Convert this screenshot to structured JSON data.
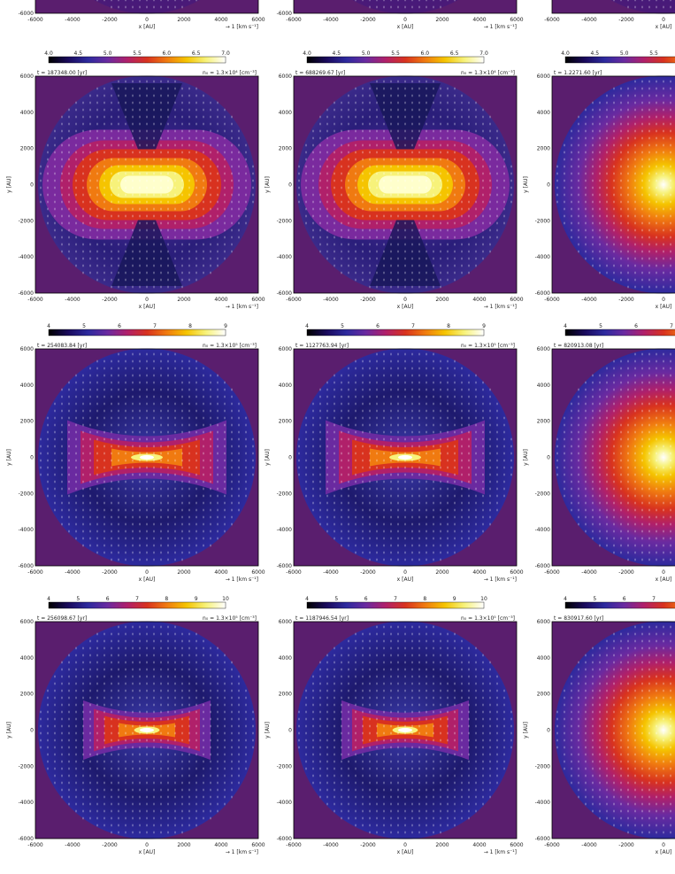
{
  "figure": {
    "colormap": [
      "#000000",
      "#1a0a5c",
      "#2d2a9e",
      "#6a2aa0",
      "#b0206a",
      "#d8321f",
      "#f07a10",
      "#f5c400",
      "#f7f27a",
      "#ffffff"
    ],
    "background_outside": "#5a1e6e",
    "vector_color": "#ffffff"
  },
  "rows": [
    {
      "row_id": "row0",
      "cbar_ticks": [
        "4.0",
        "4.5",
        "5.0",
        "5.5",
        "6.0",
        "6.5",
        "7.0"
      ],
      "panels": [
        {
          "time": "",
          "norm": "",
          "xlabel": "x [AU]",
          "ylabel": "",
          "vec_scale": "→ 1 [km s⁻¹]",
          "x_ticks": [
            "-6000",
            "-4000",
            "-2000",
            "0",
            "2000",
            "4000",
            "6000"
          ],
          "y_ticks": [
            "-6000"
          ],
          "pattern": "top"
        },
        {
          "time": "",
          "norm": "",
          "xlabel": "x [AU]",
          "ylabel": "",
          "vec_scale": "→ 1 [km s⁻¹]",
          "x_ticks": [
            "-6000",
            "-4000",
            "-2000",
            "0",
            "2000",
            "4000",
            "6000"
          ],
          "y_ticks": [
            "-6000"
          ],
          "pattern": "top"
        },
        {
          "time": "",
          "norm": "",
          "xlabel": "x [AU]",
          "ylabel": "",
          "vec_scale": "",
          "x_ticks": [
            "-6000",
            "-4000",
            "-2000",
            "0"
          ],
          "y_ticks": [],
          "pattern": "top"
        }
      ]
    },
    {
      "row_id": "row1",
      "cbar_ticks": [
        "4.0",
        "4.5",
        "5.0",
        "5.5",
        "6.0",
        "6.5",
        "7.0"
      ],
      "panels": [
        {
          "time": "t = 187348.00 [yr]",
          "norm": "n₀ = 1.3×10⁴ [cm⁻³]",
          "xlabel": "x [AU]",
          "ylabel": "y [AU]",
          "vec_scale": "→ 1 [km s⁻¹]",
          "x_ticks": [
            "-6000",
            "-4000",
            "-2000",
            "0",
            "2000",
            "4000",
            "6000"
          ],
          "y_ticks": [
            "6000",
            "4000",
            "2000",
            "0",
            "-2000",
            "-4000",
            "-6000"
          ],
          "pattern": "bar-wide"
        },
        {
          "time": "t = 688269.67 [yr]",
          "norm": "n₀ = 1.3×10⁴ [cm⁻³]",
          "xlabel": "x [AU]",
          "ylabel": "y [AU]",
          "vec_scale": "→ 1 [km s⁻¹]",
          "x_ticks": [
            "-6000",
            "-4000",
            "-2000",
            "0",
            "2000",
            "4000",
            "6000"
          ],
          "y_ticks": [
            "6000",
            "4000",
            "2000",
            "0",
            "-2000",
            "-4000",
            "-6000"
          ],
          "pattern": "bar-wide"
        },
        {
          "time": "t = 1.2271.60 [yr]",
          "norm": "",
          "xlabel": "x [AU]",
          "ylabel": "y [AU]",
          "vec_scale": "",
          "x_ticks": [
            "-6000",
            "-4000",
            "-2000",
            "0"
          ],
          "y_ticks": [
            "6000",
            "4000",
            "2000",
            "0",
            "-2000",
            "-4000",
            "-6000"
          ],
          "pattern": "sphere"
        }
      ]
    },
    {
      "row_id": "row2",
      "cbar_ticks": [
        "4",
        "5",
        "6",
        "7",
        "8",
        "9"
      ],
      "panels": [
        {
          "time": "t = 254083.84 [yr]",
          "norm": "n₀ = 1.3×10⁵ [cm⁻³]",
          "xlabel": "x [AU]",
          "ylabel": "y [AU]",
          "vec_scale": "→ 1 [km s⁻¹]",
          "x_ticks": [
            "-6000",
            "-4000",
            "-2000",
            "0",
            "2000",
            "4000",
            "6000"
          ],
          "y_ticks": [
            "6000",
            "4000",
            "2000",
            "0",
            "-2000",
            "-4000",
            "-6000"
          ],
          "pattern": "bowtie"
        },
        {
          "time": "t = 1127763.94 [yr]",
          "norm": "n₀ = 1.3×10⁵ [cm⁻³]",
          "xlabel": "x [AU]",
          "ylabel": "y [AU]",
          "vec_scale": "→ 1 [km s⁻¹]",
          "x_ticks": [
            "-6000",
            "-4000",
            "-2000",
            "0",
            "2000",
            "4000",
            "6000"
          ],
          "y_ticks": [
            "6000",
            "4000",
            "2000",
            "0",
            "-2000",
            "-4000",
            "-6000"
          ],
          "pattern": "bowtie"
        },
        {
          "time": "t = 820913.08 [yr]",
          "norm": "",
          "xlabel": "x [AU]",
          "ylabel": "y [AU]",
          "vec_scale": "",
          "x_ticks": [
            "-6000",
            "-4000",
            "-2000",
            "0"
          ],
          "y_ticks": [
            "6000",
            "4000",
            "2000",
            "0",
            "-2000",
            "-4000",
            "-6000"
          ],
          "pattern": "sphere-compact"
        }
      ]
    },
    {
      "row_id": "row3",
      "cbar_ticks": [
        "4",
        "5",
        "6",
        "7",
        "8",
        "9",
        "10"
      ],
      "panels": [
        {
          "time": "t = 256098.67 [yr]",
          "norm": "n₀ = 1.3×10⁵ [cm⁻³]",
          "xlabel": "x [AU]",
          "ylabel": "y [AU]",
          "vec_scale": "→ 1 [km s⁻¹]",
          "x_ticks": [
            "-6000",
            "-4000",
            "-2000",
            "0",
            "2000",
            "4000",
            "6000"
          ],
          "y_ticks": [
            "6000",
            "4000",
            "2000",
            "0",
            "-2000",
            "-4000",
            "-6000"
          ],
          "pattern": "bowtie-thin"
        },
        {
          "time": "t = 1187946.54 [yr]",
          "norm": "n₀ = 1.3×10⁵ [cm⁻³]",
          "xlabel": "x [AU]",
          "ylabel": "y [AU]",
          "vec_scale": "→ 1 [km s⁻¹]",
          "x_ticks": [
            "-6000",
            "-4000",
            "-2000",
            "0",
            "2000",
            "4000",
            "6000"
          ],
          "y_ticks": [
            "6000",
            "4000",
            "2000",
            "0",
            "-2000",
            "-4000",
            "-6000"
          ],
          "pattern": "bowtie-thin"
        },
        {
          "time": "t = 830917.60 [yr]",
          "norm": "",
          "xlabel": "x [AU]",
          "ylabel": "y [AU]",
          "vec_scale": "",
          "x_ticks": [
            "-6000",
            "-4000",
            "-2000",
            "0"
          ],
          "y_ticks": [
            "6000",
            "4000",
            "2000",
            "0",
            "-2000",
            "-4000",
            "-6000"
          ],
          "pattern": "sphere-small"
        }
      ]
    }
  ]
}
